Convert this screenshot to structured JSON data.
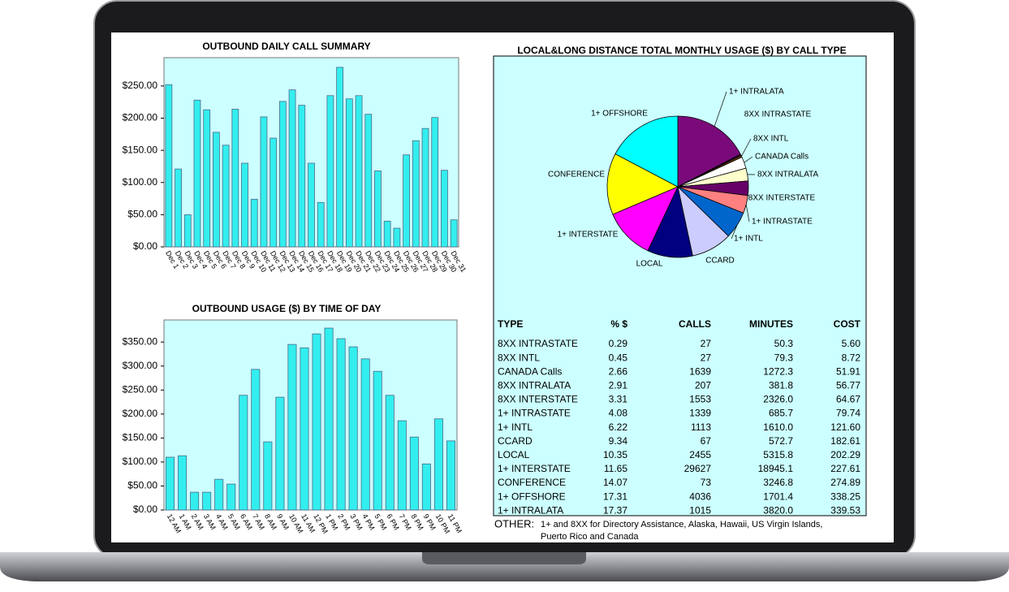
{
  "chart_data": [
    {
      "type": "bar",
      "title": "OUTBOUND DAILY CALL SUMMARY",
      "color": "#33eeee",
      "categories": [
        "Dec 1",
        "Dec 2",
        "Dec 3",
        "Dec 4",
        "Dec 5",
        "Dec 6",
        "Dec 7",
        "Dec 8",
        "Dec 9",
        "Dec 10",
        "Dec 11",
        "Dec 12",
        "Dec 13",
        "Dec 14",
        "Dec 15",
        "Dec 16",
        "Dec 17",
        "Dec 18",
        "Dec 19",
        "Dec 20",
        "Dec 21",
        "Dec 22",
        "Dec 23",
        "Dec 24",
        "Dec 25",
        "Dec 26",
        "Dec 27",
        "Dec 28",
        "Dec 29",
        "Dec 30",
        "Dec 31"
      ],
      "values": [
        252,
        121,
        50,
        228,
        213,
        178,
        158,
        214,
        130,
        74,
        202,
        169,
        226,
        244,
        220,
        130,
        69,
        235,
        279,
        230,
        235,
        206,
        118,
        40,
        29,
        143,
        165,
        184,
        201,
        119,
        42
      ],
      "ylim": [
        0,
        294
      ],
      "yticks": [
        {
          "value": 0,
          "label": "$0.00"
        },
        {
          "value": 50,
          "label": "$50.00"
        },
        {
          "value": 100,
          "label": "$100.00"
        },
        {
          "value": 150,
          "label": "$150.00"
        },
        {
          "value": 200,
          "label": "$200.00"
        },
        {
          "value": 250,
          "label": "$250.00"
        }
      ]
    },
    {
      "type": "bar",
      "title": "OUTBOUND USAGE ($) BY TIME OF DAY",
      "color": "#33eeee",
      "categories": [
        "12 AM",
        "1 AM",
        "2 AM",
        "3 AM",
        "4 AM",
        "5 AM",
        "6 AM",
        "7 AM",
        "8 AM",
        "9 AM",
        "10 AM",
        "11 AM",
        "12 PM",
        "1 PM",
        "2 PM",
        "3 PM",
        "4 PM",
        "5 PM",
        "6 PM",
        "7 PM",
        "8 PM",
        "9 PM",
        "10 PM",
        "11 PM"
      ],
      "values": [
        110,
        113,
        37,
        37,
        64,
        54,
        239,
        293,
        142,
        235,
        345,
        338,
        367,
        379,
        357,
        340,
        315,
        289,
        239,
        186,
        152,
        96,
        190,
        144
      ],
      "ylim": [
        0,
        396
      ],
      "yticks": [
        {
          "value": 0,
          "label": "$0.00"
        },
        {
          "value": 50,
          "label": "$50.00"
        },
        {
          "value": 100,
          "label": "$100.00"
        },
        {
          "value": 150,
          "label": "$150.00"
        },
        {
          "value": 200,
          "label": "$200.00"
        },
        {
          "value": 250,
          "label": "$250.00"
        },
        {
          "value": 300,
          "label": "$300.00"
        },
        {
          "value": 350,
          "label": "$350.00"
        }
      ]
    },
    {
      "type": "pie",
      "title": "LOCAL&LONG DISTANCE TOTAL MONTHLY USAGE ($) BY CALL TYPE",
      "categories": [
        "1+ INTRALATA",
        "8XX INTRASTATE",
        "8XX INTL",
        "CANADA Calls",
        "8XX INTRALATA",
        "8XX INTERSTATE",
        "1+ INTRASTATE",
        "1+ INTL",
        "CCARD",
        "LOCAL",
        "1+ INTERSTATE",
        "CONFERENCE",
        "1+ OFFSHORE"
      ],
      "values": [
        17.37,
        0.29,
        0.45,
        2.66,
        2.91,
        3.31,
        4.08,
        6.22,
        9.34,
        10.35,
        11.65,
        14.07,
        17.31
      ],
      "colors": [
        "#7a0a7a",
        "#330066",
        "#663300",
        "#ffffff",
        "#ffffcc",
        "#660066",
        "#ff8080",
        "#0066cc",
        "#ccccff",
        "#000080",
        "#ff00ff",
        "#ffff00",
        "#00ffff"
      ]
    }
  ],
  "table": {
    "header": [
      "TYPE",
      "% $",
      "CALLS",
      "MINUTES",
      "COST"
    ],
    "rows": [
      [
        "8XX INTRASTATE",
        "0.29",
        "27",
        "50.3",
        "5.60"
      ],
      [
        "8XX INTL",
        "0.45",
        "27",
        "79.3",
        "8.72"
      ],
      [
        "CANADA Calls",
        "2.66",
        "1639",
        "1272.3",
        "51.91"
      ],
      [
        "8XX INTRALATA",
        "2.91",
        "207",
        "381.8",
        "56.77"
      ],
      [
        "8XX INTERSTATE",
        "3.31",
        "1553",
        "2326.0",
        "64.67"
      ],
      [
        "1+ INTRASTATE",
        "4.08",
        "1339",
        "685.7",
        "79.74"
      ],
      [
        "1+ INTL",
        "6.22",
        "1113",
        "1610.0",
        "121.60"
      ],
      [
        "CCARD",
        "9.34",
        "67",
        "572.7",
        "182.61"
      ],
      [
        "LOCAL",
        "10.35",
        "2455",
        "5315.8",
        "202.29"
      ],
      [
        "1+ INTERSTATE",
        "11.65",
        "29627",
        "18945.1",
        "227.61"
      ],
      [
        "CONFERENCE",
        "14.07",
        "73",
        "3246.8",
        "274.89"
      ],
      [
        "1+ OFFSHORE",
        "17.31",
        "4036",
        "1701.4",
        "338.25"
      ],
      [
        "1+ INTRALATA",
        "17.37",
        "1015",
        "3820.0",
        "339.53"
      ]
    ]
  },
  "note": {
    "label": "OTHER:",
    "text": [
      "1+ and 8XX for Directory Assistance, Alaska, Hawaii, US Virgin Islands,",
      "Puerto Rico and Canada"
    ]
  }
}
